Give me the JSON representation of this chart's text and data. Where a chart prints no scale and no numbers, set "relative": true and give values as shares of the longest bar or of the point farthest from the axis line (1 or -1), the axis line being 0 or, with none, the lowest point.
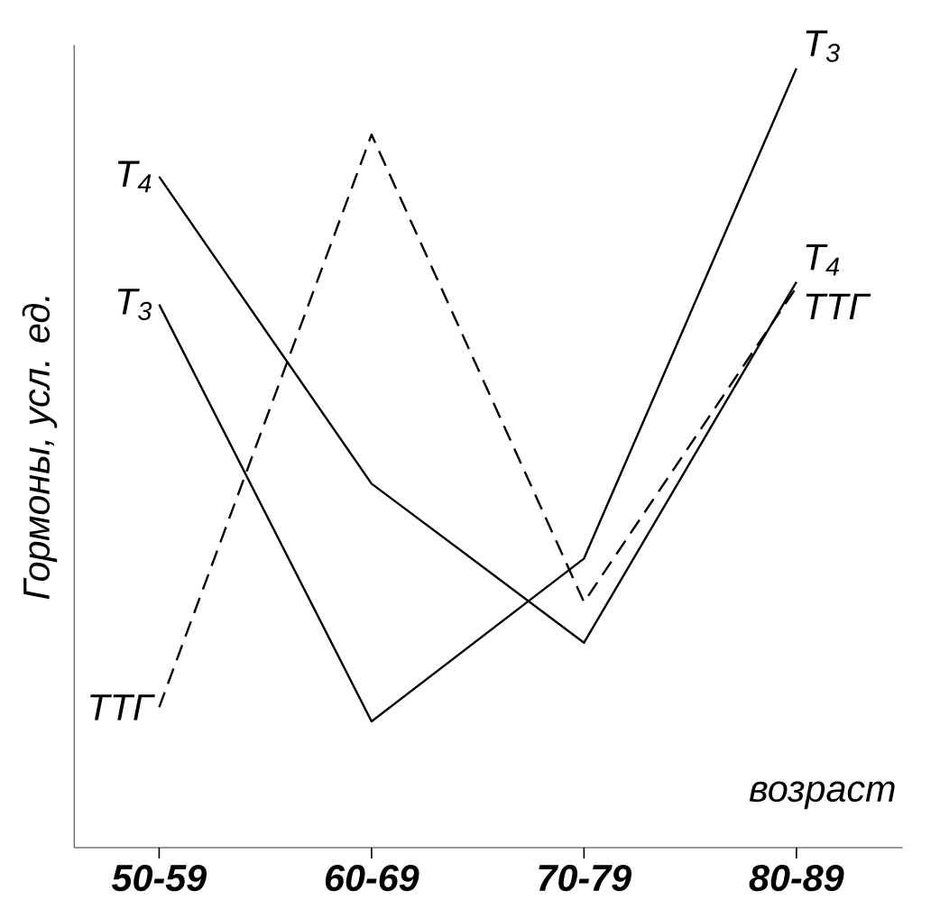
{
  "chart_data": {
    "type": "line",
    "relative": true,
    "xlabel": "возраст",
    "ylabel": "Гормоны, усл. ед.",
    "categories": [
      "50-59",
      "60-69",
      "70-79",
      "80-89"
    ],
    "series": [
      {
        "name": "T$_{4}$",
        "color": "#000000",
        "line_style": "solid",
        "values": [
          0.861,
          0.467,
          0.263,
          0.726
        ]
      },
      {
        "name": "T$_{3}$",
        "color": "#000000",
        "line_style": "solid",
        "values": [
          0.697,
          0.162,
          0.371,
          1
        ]
      },
      {
        "name": "ТТГ",
        "color": "#000000",
        "line_style": "dashed",
        "values": [
          0.18,
          0.915,
          0.315,
          0.719
        ]
      }
    ]
  }
}
